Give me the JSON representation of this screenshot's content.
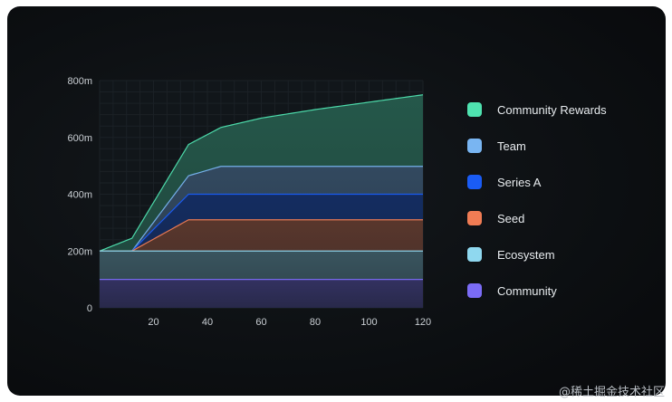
{
  "chart_data": {
    "type": "area",
    "stacked": true,
    "x_ticks": [
      20,
      40,
      60,
      80,
      100,
      120
    ],
    "y_ticks": [
      "800m",
      "600m",
      "400m",
      "200m",
      "0"
    ],
    "xlim": [
      0,
      120
    ],
    "ylim": [
      0,
      800
    ],
    "legend_position": "right",
    "grid": true,
    "series": [
      {
        "name": "Community",
        "color": "#7b6cf6",
        "points": [
          [
            0,
            100
          ],
          [
            120,
            100
          ]
        ]
      },
      {
        "name": "Ecosystem",
        "color": "#8fd8ef",
        "points": [
          [
            0,
            200
          ],
          [
            120,
            200
          ]
        ]
      },
      {
        "name": "Seed",
        "color": "#f07c54",
        "points": [
          [
            0,
            200
          ],
          [
            12,
            200
          ],
          [
            33,
            310
          ],
          [
            120,
            310
          ]
        ]
      },
      {
        "name": "Series A",
        "color": "#1a5cf5",
        "points": [
          [
            0,
            200
          ],
          [
            12,
            200
          ],
          [
            33,
            400
          ],
          [
            120,
            400
          ]
        ]
      },
      {
        "name": "Team",
        "color": "#79b5f2",
        "points": [
          [
            0,
            200
          ],
          [
            12,
            200
          ],
          [
            33,
            465
          ],
          [
            45,
            498
          ],
          [
            120,
            498
          ]
        ]
      },
      {
        "name": "Community Rewards",
        "color": "#4fe3b0",
        "points": [
          [
            0,
            200
          ],
          [
            12,
            245
          ],
          [
            33,
            575
          ],
          [
            45,
            635
          ],
          [
            60,
            668
          ],
          [
            80,
            698
          ],
          [
            100,
            724
          ],
          [
            120,
            750
          ]
        ]
      }
    ],
    "legend_order": [
      "Community Rewards",
      "Team",
      "Series A",
      "Seed",
      "Ecosystem",
      "Community"
    ]
  },
  "watermark": "@稀土掘金技术社区"
}
